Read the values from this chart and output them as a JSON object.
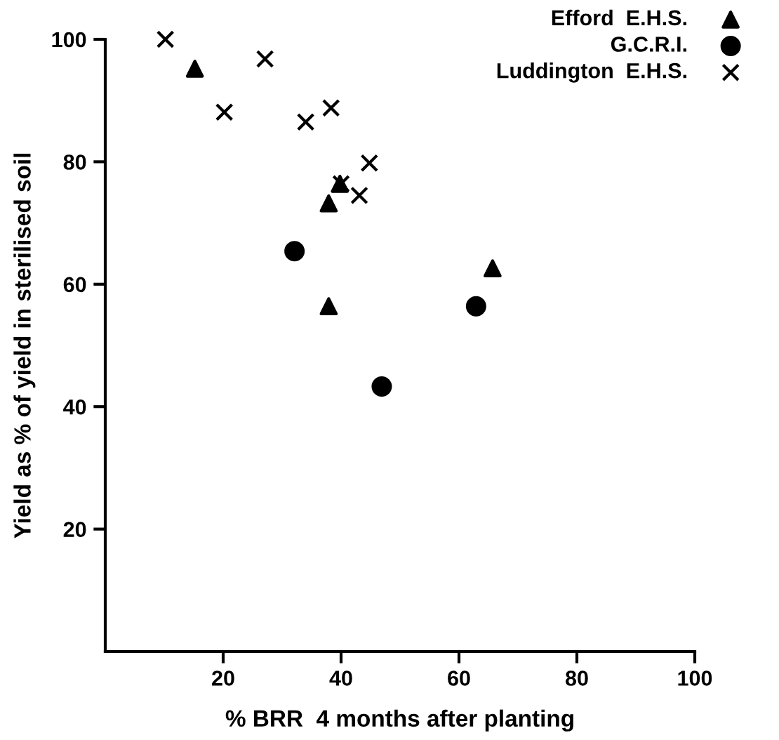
{
  "chart_data": {
    "type": "scatter",
    "xlabel": "% BRR  4 months after planting",
    "ylabel": "Yield as % of yield in sterilised soil",
    "xlim": [
      0,
      100
    ],
    "ylim": [
      0,
      100
    ],
    "xticks": [
      20,
      40,
      60,
      80,
      100
    ],
    "yticks": [
      20,
      40,
      60,
      80,
      100
    ],
    "grid": false,
    "legend": "top right",
    "series": [
      {
        "name": "Efford  E.H.S.",
        "color": "#000000",
        "marker": "triangle",
        "x": [
          15.2,
          37.9,
          39.8,
          37.9,
          65.7
        ],
        "values": [
          95.2,
          73.2,
          76.4,
          56.4,
          62.6
        ]
      },
      {
        "name": "G.C.R.I.",
        "color": "#000000",
        "marker": "circle",
        "x": [
          32.1,
          46.9,
          62.9
        ],
        "values": [
          65.4,
          43.3,
          56.4
        ]
      },
      {
        "name": "Luddington  E.H.S.",
        "color": "#000000",
        "marker": "cross",
        "x": [
          10.2,
          27.1,
          20.2,
          34.0,
          38.3,
          44.8,
          40.0,
          43.1
        ],
        "values": [
          100,
          96.8,
          88.1,
          86.5,
          88.8,
          79.8,
          76.4,
          74.5
        ]
      }
    ]
  }
}
